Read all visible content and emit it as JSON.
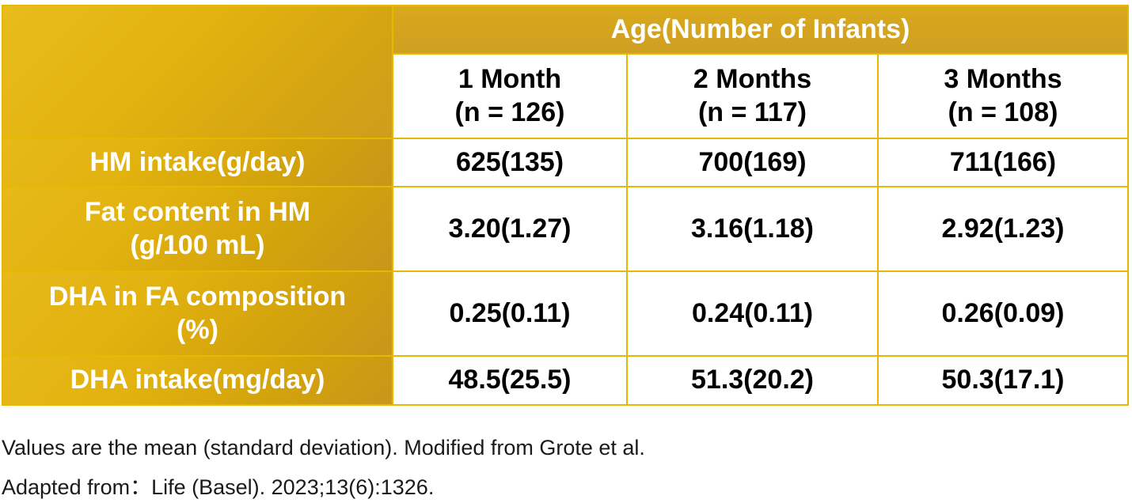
{
  "table": {
    "group_header": "Age(Number of Infants)",
    "columns": [
      {
        "line1": "1 Month",
        "line2": "(n = 126)"
      },
      {
        "line1": "2 Months",
        "line2": "(n = 117)"
      },
      {
        "line1": "3 Months",
        "line2": "(n = 108)"
      }
    ],
    "rows": [
      {
        "line1": "HM intake(g/day)",
        "line2": "",
        "values": [
          "625(135)",
          "700(169)",
          "711(166)"
        ]
      },
      {
        "line1": "Fat content in HM",
        "line2": "(g/100 mL)",
        "values": [
          "3.20(1.27)",
          "3.16(1.18)",
          "2.92(1.23)"
        ]
      },
      {
        "line1": "DHA in FA composition",
        "line2": "(%)",
        "values": [
          "0.25(0.11)",
          "0.24(0.11)",
          "0.26(0.09)"
        ]
      },
      {
        "line1": "DHA intake(mg/day)",
        "line2": "",
        "values": [
          "48.5(25.5)",
          "51.3(20.2)",
          "50.3(17.1)"
        ]
      }
    ]
  },
  "footnotes": {
    "line1": "Values are the mean (standard deviation). Modified from Grote et al.",
    "line2": "Adapted from：Life (Basel). 2023;13(6):1326."
  },
  "colors": {
    "gold": "#e2b20f",
    "gold_dark": "#cf9d1c",
    "border": "#e6b800",
    "header_text": "#ffffff",
    "body_text": "#000000"
  }
}
